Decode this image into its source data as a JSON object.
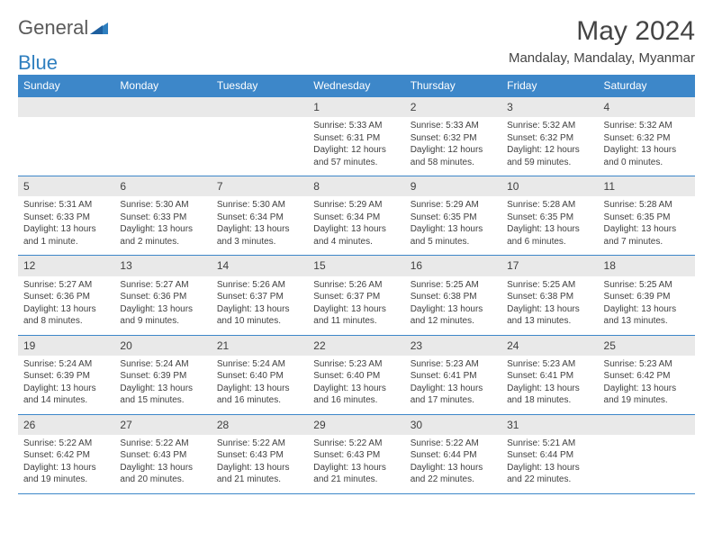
{
  "brand": {
    "part1": "General",
    "part2": "Blue"
  },
  "title": "May 2024",
  "location": "Mandalay, Mandalay, Myanmar",
  "colors": {
    "header_bg": "#3d87c9",
    "header_text": "#ffffff",
    "daynum_bg": "#e9e9e9",
    "rule": "#3d87c9",
    "body_text": "#3f3f3f",
    "brand_grey": "#5a5a5a",
    "brand_blue": "#2f7fbf"
  },
  "day_headers": [
    "Sunday",
    "Monday",
    "Tuesday",
    "Wednesday",
    "Thursday",
    "Friday",
    "Saturday"
  ],
  "weeks": [
    [
      null,
      null,
      null,
      {
        "n": "1",
        "sunrise": "5:33 AM",
        "sunset": "6:31 PM",
        "daylight": "12 hours and 57 minutes."
      },
      {
        "n": "2",
        "sunrise": "5:33 AM",
        "sunset": "6:32 PM",
        "daylight": "12 hours and 58 minutes."
      },
      {
        "n": "3",
        "sunrise": "5:32 AM",
        "sunset": "6:32 PM",
        "daylight": "12 hours and 59 minutes."
      },
      {
        "n": "4",
        "sunrise": "5:32 AM",
        "sunset": "6:32 PM",
        "daylight": "13 hours and 0 minutes."
      }
    ],
    [
      {
        "n": "5",
        "sunrise": "5:31 AM",
        "sunset": "6:33 PM",
        "daylight": "13 hours and 1 minute."
      },
      {
        "n": "6",
        "sunrise": "5:30 AM",
        "sunset": "6:33 PM",
        "daylight": "13 hours and 2 minutes."
      },
      {
        "n": "7",
        "sunrise": "5:30 AM",
        "sunset": "6:34 PM",
        "daylight": "13 hours and 3 minutes."
      },
      {
        "n": "8",
        "sunrise": "5:29 AM",
        "sunset": "6:34 PM",
        "daylight": "13 hours and 4 minutes."
      },
      {
        "n": "9",
        "sunrise": "5:29 AM",
        "sunset": "6:35 PM",
        "daylight": "13 hours and 5 minutes."
      },
      {
        "n": "10",
        "sunrise": "5:28 AM",
        "sunset": "6:35 PM",
        "daylight": "13 hours and 6 minutes."
      },
      {
        "n": "11",
        "sunrise": "5:28 AM",
        "sunset": "6:35 PM",
        "daylight": "13 hours and 7 minutes."
      }
    ],
    [
      {
        "n": "12",
        "sunrise": "5:27 AM",
        "sunset": "6:36 PM",
        "daylight": "13 hours and 8 minutes."
      },
      {
        "n": "13",
        "sunrise": "5:27 AM",
        "sunset": "6:36 PM",
        "daylight": "13 hours and 9 minutes."
      },
      {
        "n": "14",
        "sunrise": "5:26 AM",
        "sunset": "6:37 PM",
        "daylight": "13 hours and 10 minutes."
      },
      {
        "n": "15",
        "sunrise": "5:26 AM",
        "sunset": "6:37 PM",
        "daylight": "13 hours and 11 minutes."
      },
      {
        "n": "16",
        "sunrise": "5:25 AM",
        "sunset": "6:38 PM",
        "daylight": "13 hours and 12 minutes."
      },
      {
        "n": "17",
        "sunrise": "5:25 AM",
        "sunset": "6:38 PM",
        "daylight": "13 hours and 13 minutes."
      },
      {
        "n": "18",
        "sunrise": "5:25 AM",
        "sunset": "6:39 PM",
        "daylight": "13 hours and 13 minutes."
      }
    ],
    [
      {
        "n": "19",
        "sunrise": "5:24 AM",
        "sunset": "6:39 PM",
        "daylight": "13 hours and 14 minutes."
      },
      {
        "n": "20",
        "sunrise": "5:24 AM",
        "sunset": "6:39 PM",
        "daylight": "13 hours and 15 minutes."
      },
      {
        "n": "21",
        "sunrise": "5:24 AM",
        "sunset": "6:40 PM",
        "daylight": "13 hours and 16 minutes."
      },
      {
        "n": "22",
        "sunrise": "5:23 AM",
        "sunset": "6:40 PM",
        "daylight": "13 hours and 16 minutes."
      },
      {
        "n": "23",
        "sunrise": "5:23 AM",
        "sunset": "6:41 PM",
        "daylight": "13 hours and 17 minutes."
      },
      {
        "n": "24",
        "sunrise": "5:23 AM",
        "sunset": "6:41 PM",
        "daylight": "13 hours and 18 minutes."
      },
      {
        "n": "25",
        "sunrise": "5:23 AM",
        "sunset": "6:42 PM",
        "daylight": "13 hours and 19 minutes."
      }
    ],
    [
      {
        "n": "26",
        "sunrise": "5:22 AM",
        "sunset": "6:42 PM",
        "daylight": "13 hours and 19 minutes."
      },
      {
        "n": "27",
        "sunrise": "5:22 AM",
        "sunset": "6:43 PM",
        "daylight": "13 hours and 20 minutes."
      },
      {
        "n": "28",
        "sunrise": "5:22 AM",
        "sunset": "6:43 PM",
        "daylight": "13 hours and 21 minutes."
      },
      {
        "n": "29",
        "sunrise": "5:22 AM",
        "sunset": "6:43 PM",
        "daylight": "13 hours and 21 minutes."
      },
      {
        "n": "30",
        "sunrise": "5:22 AM",
        "sunset": "6:44 PM",
        "daylight": "13 hours and 22 minutes."
      },
      {
        "n": "31",
        "sunrise": "5:21 AM",
        "sunset": "6:44 PM",
        "daylight": "13 hours and 22 minutes."
      },
      null
    ]
  ],
  "labels": {
    "sunrise": "Sunrise:",
    "sunset": "Sunset:",
    "daylight": "Daylight:"
  }
}
